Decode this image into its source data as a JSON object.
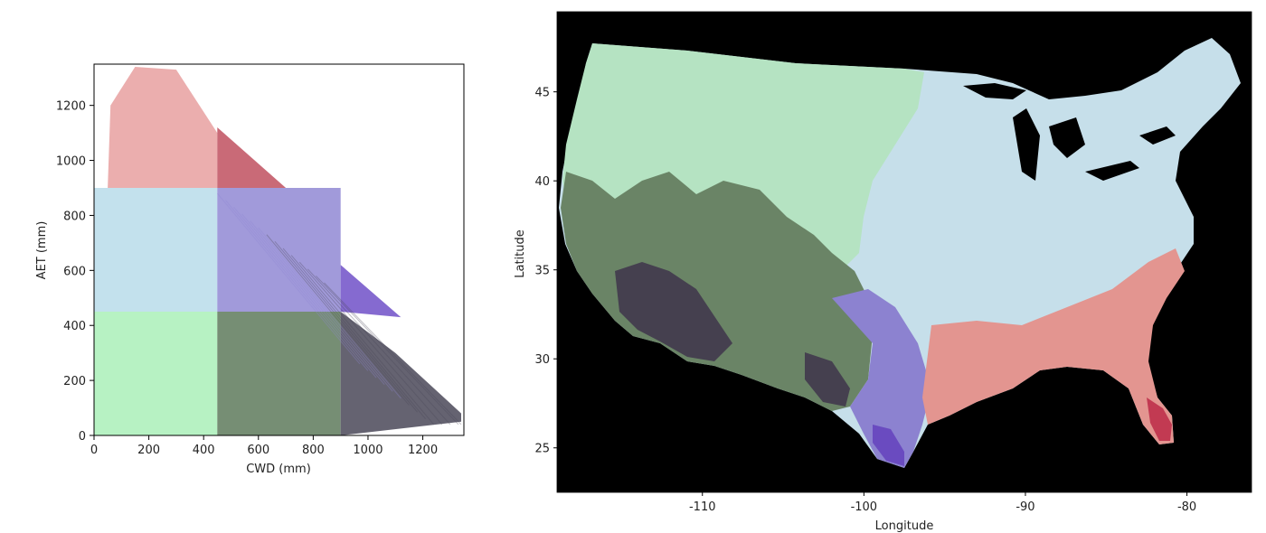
{
  "chart_data": [
    {
      "type": "scatter",
      "xlabel": "CWD (mm)",
      "ylabel": "AET (mm)",
      "xlim": [
        0,
        1350
      ],
      "ylim": [
        0,
        1350
      ],
      "xticks": [
        "0",
        "200",
        "400",
        "600",
        "800",
        "1000",
        "1200"
      ],
      "yticks": [
        "0",
        "200",
        "400",
        "600",
        "800",
        "1000",
        "1200"
      ],
      "grid": false,
      "class_bins": {
        "cwd_edges": [
          0,
          450,
          900,
          1350
        ],
        "aet_edges": [
          0,
          450,
          900,
          1350
        ]
      },
      "class_colors": {
        "low_cwd_high_aet": "#e8a0a0",
        "mid_cwd_high_aet": "#c0505f",
        "low_cwd_mid_aet": "#b8dcea",
        "mid_cwd_mid_aet": "#9088d4",
        "high_cwd_mid_aet": "#7050c8",
        "low_cwd_low_aet": "#aaf0b8",
        "mid_cwd_low_aet": "#5e7a5c",
        "high_cwd_low_aet": "#4a4858"
      }
    },
    {
      "type": "heatmap",
      "xlabel": "Longitude",
      "ylabel": "Latitude",
      "xticks": [
        "-110",
        "-100",
        "-90",
        "-80"
      ],
      "yticks": [
        "25",
        "30",
        "35",
        "40",
        "45"
      ],
      "xlim": [
        -119,
        -76
      ],
      "ylim": [
        22.5,
        49.5
      ],
      "background_color": "#000000",
      "region_colors": {
        "low_cwd_low_aet": "#b5e3c2",
        "mid_cwd_low_aet": "#6a8466",
        "high_cwd_low_aet": "#45404f",
        "low_cwd_mid_aet": "#c6dfea",
        "mid_cwd_mid_aet": "#8c82d0",
        "high_cwd_mid_aet": "#6a4bc0",
        "low_cwd_high_aet": "#e39590",
        "mid_cwd_high_aet": "#c23a52"
      }
    }
  ]
}
